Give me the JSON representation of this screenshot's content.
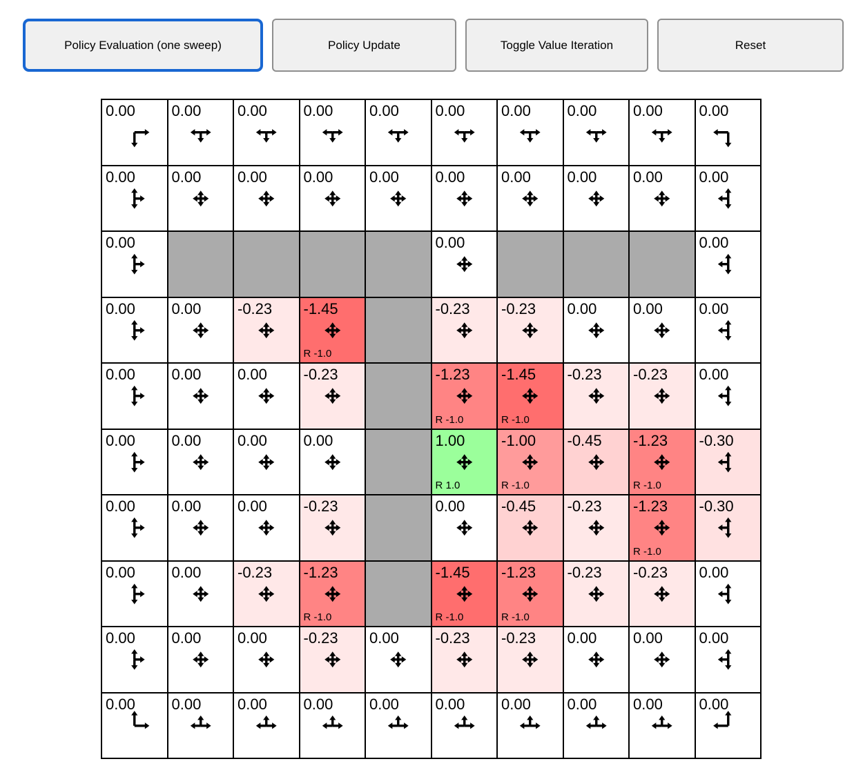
{
  "toolbar": {
    "buttons": [
      {
        "label": "Policy Evaluation (one sweep)",
        "active": true
      },
      {
        "label": "Policy Update",
        "active": false
      },
      {
        "label": "Toggle Value Iteration",
        "active": false
      },
      {
        "label": "Reset",
        "active": false
      }
    ]
  },
  "colors": {
    "active_button_border": "#1967D2",
    "button_border": "#8E8E8E",
    "button_bg": "#F0F0F0",
    "grid_line": "#000000",
    "wall": "#ABABAB",
    "positive_cell": "#9BFF9B",
    "value_colors": {
      "1.00": "#9BFF9B",
      "0.00": "#FFFFFF",
      "-0.23": "#FFE8E8",
      "-0.30": "#FFE1E1",
      "-0.45": "#FFD2D2",
      "-1.00": "#FF9B9B",
      "-1.23": "#FF8484",
      "-1.45": "#FF6E6E"
    }
  },
  "grid": {
    "rows": 10,
    "cols": 10,
    "cells": [
      [
        {
          "v": "0.00",
          "a": "dr"
        },
        {
          "v": "0.00",
          "a": "dlr"
        },
        {
          "v": "0.00",
          "a": "dlr"
        },
        {
          "v": "0.00",
          "a": "dlr"
        },
        {
          "v": "0.00",
          "a": "dlr"
        },
        {
          "v": "0.00",
          "a": "dlr"
        },
        {
          "v": "0.00",
          "a": "dlr"
        },
        {
          "v": "0.00",
          "a": "dlr"
        },
        {
          "v": "0.00",
          "a": "dlr"
        },
        {
          "v": "0.00",
          "a": "dl"
        }
      ],
      [
        {
          "v": "0.00",
          "a": "udr"
        },
        {
          "v": "0.00",
          "a": "udlr"
        },
        {
          "v": "0.00",
          "a": "udlr"
        },
        {
          "v": "0.00",
          "a": "udlr"
        },
        {
          "v": "0.00",
          "a": "udlr"
        },
        {
          "v": "0.00",
          "a": "udlr"
        },
        {
          "v": "0.00",
          "a": "udlr"
        },
        {
          "v": "0.00",
          "a": "udlr"
        },
        {
          "v": "0.00",
          "a": "udlr"
        },
        {
          "v": "0.00",
          "a": "udl"
        }
      ],
      [
        {
          "v": "0.00",
          "a": "udr"
        },
        {
          "wall": true
        },
        {
          "wall": true
        },
        {
          "wall": true
        },
        {
          "wall": true
        },
        {
          "v": "0.00",
          "a": "udlr"
        },
        {
          "wall": true
        },
        {
          "wall": true
        },
        {
          "wall": true
        },
        {
          "v": "0.00",
          "a": "udl"
        }
      ],
      [
        {
          "v": "0.00",
          "a": "udr"
        },
        {
          "v": "0.00",
          "a": "udlr"
        },
        {
          "v": "-0.23",
          "a": "udlr"
        },
        {
          "v": "-1.45",
          "a": "udlr",
          "r": "R -1.0"
        },
        {
          "wall": true
        },
        {
          "v": "-0.23",
          "a": "udlr"
        },
        {
          "v": "-0.23",
          "a": "udlr"
        },
        {
          "v": "0.00",
          "a": "udlr"
        },
        {
          "v": "0.00",
          "a": "udlr"
        },
        {
          "v": "0.00",
          "a": "udl"
        }
      ],
      [
        {
          "v": "0.00",
          "a": "udr"
        },
        {
          "v": "0.00",
          "a": "udlr"
        },
        {
          "v": "0.00",
          "a": "udlr"
        },
        {
          "v": "-0.23",
          "a": "udlr"
        },
        {
          "wall": true
        },
        {
          "v": "-1.23",
          "a": "udlr",
          "r": "R -1.0"
        },
        {
          "v": "-1.45",
          "a": "udlr",
          "r": "R -1.0"
        },
        {
          "v": "-0.23",
          "a": "udlr"
        },
        {
          "v": "-0.23",
          "a": "udlr"
        },
        {
          "v": "0.00",
          "a": "udl"
        }
      ],
      [
        {
          "v": "0.00",
          "a": "udr"
        },
        {
          "v": "0.00",
          "a": "udlr"
        },
        {
          "v": "0.00",
          "a": "udlr"
        },
        {
          "v": "0.00",
          "a": "udlr"
        },
        {
          "wall": true
        },
        {
          "v": "1.00",
          "a": "udlr",
          "r": "R 1.0"
        },
        {
          "v": "-1.00",
          "a": "udlr",
          "r": "R -1.0"
        },
        {
          "v": "-0.45",
          "a": "udlr"
        },
        {
          "v": "-1.23",
          "a": "udlr",
          "r": "R -1.0"
        },
        {
          "v": "-0.30",
          "a": "udl"
        }
      ],
      [
        {
          "v": "0.00",
          "a": "udr"
        },
        {
          "v": "0.00",
          "a": "udlr"
        },
        {
          "v": "0.00",
          "a": "udlr"
        },
        {
          "v": "-0.23",
          "a": "udlr"
        },
        {
          "wall": true
        },
        {
          "v": "0.00",
          "a": "udlr"
        },
        {
          "v": "-0.45",
          "a": "udlr"
        },
        {
          "v": "-0.23",
          "a": "udlr"
        },
        {
          "v": "-1.23",
          "a": "udlr",
          "r": "R -1.0"
        },
        {
          "v": "-0.30",
          "a": "udl"
        }
      ],
      [
        {
          "v": "0.00",
          "a": "udr"
        },
        {
          "v": "0.00",
          "a": "udlr"
        },
        {
          "v": "-0.23",
          "a": "udlr"
        },
        {
          "v": "-1.23",
          "a": "udlr",
          "r": "R -1.0"
        },
        {
          "wall": true
        },
        {
          "v": "-1.45",
          "a": "udlr",
          "r": "R -1.0"
        },
        {
          "v": "-1.23",
          "a": "udlr",
          "r": "R -1.0"
        },
        {
          "v": "-0.23",
          "a": "udlr"
        },
        {
          "v": "-0.23",
          "a": "udlr"
        },
        {
          "v": "0.00",
          "a": "udl"
        }
      ],
      [
        {
          "v": "0.00",
          "a": "udr"
        },
        {
          "v": "0.00",
          "a": "udlr"
        },
        {
          "v": "0.00",
          "a": "udlr"
        },
        {
          "v": "-0.23",
          "a": "udlr"
        },
        {
          "v": "0.00",
          "a": "udlr"
        },
        {
          "v": "-0.23",
          "a": "udlr"
        },
        {
          "v": "-0.23",
          "a": "udlr"
        },
        {
          "v": "0.00",
          "a": "udlr"
        },
        {
          "v": "0.00",
          "a": "udlr"
        },
        {
          "v": "0.00",
          "a": "udl"
        }
      ],
      [
        {
          "v": "0.00",
          "a": "ur"
        },
        {
          "v": "0.00",
          "a": "ulr"
        },
        {
          "v": "0.00",
          "a": "ulr"
        },
        {
          "v": "0.00",
          "a": "ulr"
        },
        {
          "v": "0.00",
          "a": "ulr"
        },
        {
          "v": "0.00",
          "a": "ulr"
        },
        {
          "v": "0.00",
          "a": "ulr"
        },
        {
          "v": "0.00",
          "a": "ulr"
        },
        {
          "v": "0.00",
          "a": "ulr"
        },
        {
          "v": "0.00",
          "a": "ul"
        }
      ]
    ]
  }
}
